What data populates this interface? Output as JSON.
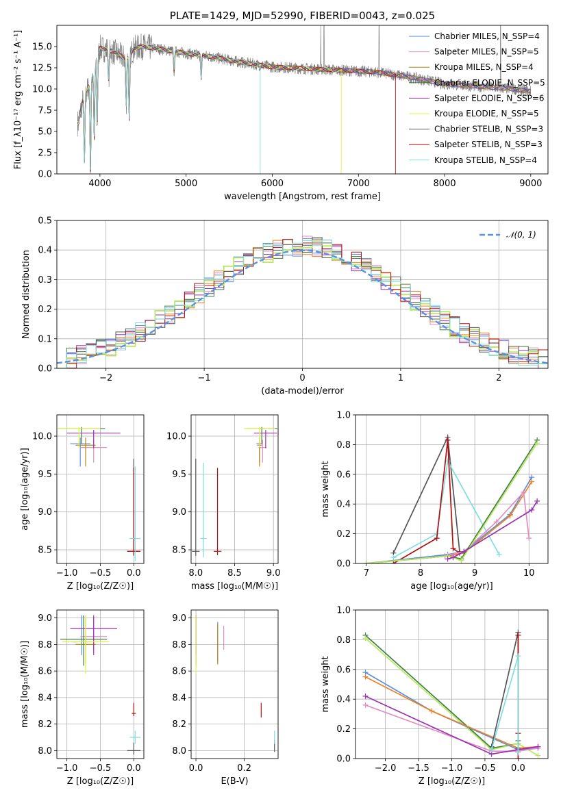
{
  "colors": {
    "Chabrier MILES": "#5b8fe0",
    "Salpeter MILES": "#e48cc0",
    "Kroupa MILES": "#b8860b",
    "Chabrier ELODIE": "#3f7f3f",
    "Salpeter ELODIE": "#9b30b0",
    "Kroupa ELODIE": "#e0f040",
    "Chabrier STELIB": "#555555",
    "Salpeter STELIB": "#b01010",
    "Kroupa STELIB": "#7fdde0",
    "Kroupa MILES line": "#f08020",
    "Kroupa ELODIE line": "#b8e860",
    "data": "#808080",
    "gaussian": "#5b8fe0"
  },
  "chart_data": [
    {
      "id": "spectrum",
      "type": "line",
      "title": "PLATE=1429, MJD=52990, FIBERID=0043, z=0.025",
      "xlabel": "wavelength [Angstrom, rest frame]",
      "ylabel": "Flux [f_λ10⁻¹⁷ erg cm⁻² s⁻¹ A⁻¹]",
      "xlim": [
        3500,
        9200
      ],
      "ylim": [
        0,
        17.5
      ],
      "xticks": [
        4000,
        5000,
        6000,
        7000,
        8000,
        9000
      ],
      "yticks": [
        0.0,
        2.5,
        5.0,
        7.5,
        10.0,
        12.5,
        15.0
      ],
      "legend_position": "upper right",
      "grid": false,
      "series": [
        {
          "name": "Chabrier MILES, N_SSP=4",
          "color_key": "Chabrier MILES"
        },
        {
          "name": "Salpeter MILES, N_SSP=5",
          "color_key": "Salpeter MILES"
        },
        {
          "name": "Kroupa MILES, N_SSP=4",
          "color_key": "Kroupa MILES"
        },
        {
          "name": "Chabrier ELODIE, N_SSP=5",
          "color_key": "Chabrier ELODIE"
        },
        {
          "name": "Salpeter ELODIE, N_SSP=6",
          "color_key": "Salpeter ELODIE"
        },
        {
          "name": "Kroupa ELODIE, N_SSP=5",
          "color_key": "Kroupa ELODIE"
        },
        {
          "name": "Chabrier STELIB, N_SSP=3",
          "color_key": "Chabrier STELIB"
        },
        {
          "name": "Salpeter STELIB, N_SSP=3",
          "color_key": "Salpeter STELIB"
        },
        {
          "name": "Kroupa STELIB, N_SSP=4",
          "color_key": "Kroupa STELIB"
        }
      ],
      "continuum": {
        "x": [
          3750,
          3800,
          3900,
          4000,
          4100,
          4200,
          4300,
          4400,
          4500,
          4700,
          5000,
          5300,
          5600,
          6000,
          6400,
          6800,
          7200,
          7600,
          8000,
          8400,
          8800,
          9000
        ],
        "y": [
          6.0,
          8.5,
          11.0,
          14.8,
          14.6,
          14.2,
          13.5,
          14.8,
          15.0,
          14.7,
          14.2,
          13.8,
          13.2,
          12.6,
          12.4,
          12.2,
          12.0,
          11.4,
          10.6,
          10.3,
          10.0,
          9.7
        ]
      },
      "absorption_features": [
        {
          "x": 3820,
          "y": 1.5
        },
        {
          "x": 3890,
          "y": 0.5
        },
        {
          "x": 3934,
          "y": 4.0
        },
        {
          "x": 3968,
          "y": 5.5
        },
        {
          "x": 4102,
          "y": 11.0
        },
        {
          "x": 4305,
          "y": 8.2
        },
        {
          "x": 4340,
          "y": 6.5
        },
        {
          "x": 4861,
          "y": 12.0
        },
        {
          "x": 5175,
          "y": 11.3
        }
      ],
      "model_cutoffs": [
        {
          "color_key": "Kroupa STELIB",
          "x": 5860
        },
        {
          "color_key": "Kroupa ELODIE",
          "x": 6800
        },
        {
          "color_key": "Salpeter STELIB",
          "x": 7430
        }
      ],
      "data_spikes": [
        6563,
        6600,
        7240,
        8650
      ]
    },
    {
      "id": "residuals",
      "type": "histogram",
      "xlabel": "(data-model)/error",
      "ylabel": "Normed distribution",
      "xlim": [
        -2.5,
        2.5
      ],
      "ylim": [
        0,
        0.5
      ],
      "xticks": [
        -2,
        -1,
        0,
        1,
        2
      ],
      "yticks": [
        0.0,
        0.1,
        0.2,
        0.3,
        0.4,
        0.5
      ],
      "grid": true,
      "legend_position": "upper right",
      "legend": "𝒩(0, 1)",
      "gaussian": {
        "mean": 0,
        "sigma": 1
      },
      "bin_width": 0.1
    },
    {
      "id": "Z-age",
      "type": "errorbar",
      "xlabel": "Z [log₁₀(Z/Z☉)]",
      "ylabel": "age  [log₁₀(age/yr)]",
      "xlim": [
        -1.15,
        0.15
      ],
      "ylim": [
        8.32,
        10.28
      ],
      "xticks": [
        -1.0,
        -0.5,
        0.0
      ],
      "xtick_labels": [
        "−1.0",
        "−0.5",
        "0.0"
      ],
      "yticks": [
        8.5,
        9.0,
        9.5,
        10.0
      ],
      "grid": true,
      "points": [
        {
          "c": "Chabrier MILES",
          "x": -0.8,
          "xerr": 0.15,
          "y": 9.9,
          "yerr": [
            0.3,
            0.08
          ]
        },
        {
          "c": "Salpeter MILES",
          "x": -0.6,
          "xerr": 0.2,
          "y": 9.85,
          "yerr": [
            0.2,
            0.1
          ]
        },
        {
          "c": "Kroupa MILES",
          "x": -0.72,
          "xerr": 0.15,
          "y": 9.88,
          "yerr": [
            0.28,
            0.1
          ]
        },
        {
          "c": "Chabrier ELODIE",
          "x": -0.78,
          "xerr": 0.35,
          "y": 10.1,
          "yerr": [
            0.2,
            0.02
          ]
        },
        {
          "c": "Salpeter ELODIE",
          "x": -0.6,
          "xerr": 0.4,
          "y": 10.04,
          "yerr": [
            0.2,
            0.04
          ]
        },
        {
          "c": "Kroupa ELODIE",
          "x": -0.82,
          "xerr": 0.32,
          "y": 10.1,
          "yerr": [
            0.25,
            0.02
          ]
        },
        {
          "c": "Chabrier STELIB",
          "x": 0.0,
          "xerr": 0.1,
          "y": 8.48,
          "yerr": [
            0.06,
            1.22
          ]
        },
        {
          "c": "Salpeter STELIB",
          "x": 0.0,
          "xerr": 0.1,
          "y": 8.48,
          "yerr": [
            0.05,
            1.1
          ]
        },
        {
          "c": "Kroupa STELIB",
          "x": 0.02,
          "xerr": 0.08,
          "y": 8.65,
          "yerr": [
            0.3,
            0.95
          ]
        }
      ]
    },
    {
      "id": "mass-age",
      "type": "errorbar",
      "xlabel": "mass [log₁₀(M/M☉)]",
      "ylabel": "",
      "xlim": [
        7.94,
        9.06
      ],
      "ylim": [
        8.32,
        10.28
      ],
      "xticks": [
        8.0,
        8.5,
        9.0
      ],
      "yticks": [
        8.5,
        9.0,
        9.5,
        10.0
      ],
      "grid": true,
      "points": [
        {
          "c": "Chabrier MILES",
          "x": 8.82,
          "xerr": 0.04,
          "y": 9.9,
          "yerr": [
            0.25,
            0.08
          ]
        },
        {
          "c": "Salpeter MILES",
          "x": 8.86,
          "xerr": 0.05,
          "y": 9.85,
          "yerr": [
            0.2,
            0.1
          ]
        },
        {
          "c": "Kroupa MILES",
          "x": 8.82,
          "xerr": 0.03,
          "y": 9.88,
          "yerr": [
            0.28,
            0.1
          ]
        },
        {
          "c": "Chabrier ELODIE",
          "x": 8.85,
          "xerr": 0.2,
          "y": 10.1,
          "yerr": [
            0.2,
            0.02
          ]
        },
        {
          "c": "Salpeter ELODIE",
          "x": 8.9,
          "xerr": 0.15,
          "y": 10.04,
          "yerr": [
            0.2,
            0.04
          ]
        },
        {
          "c": "Kroupa ELODIE",
          "x": 8.82,
          "xerr": 0.2,
          "y": 10.1,
          "yerr": [
            0.25,
            0.02
          ]
        },
        {
          "c": "Chabrier STELIB",
          "x": 8.0,
          "xerr": 0.05,
          "y": 8.48,
          "yerr": [
            0.06,
            1.22
          ]
        },
        {
          "c": "Salpeter STELIB",
          "x": 8.28,
          "xerr": 0.05,
          "y": 8.48,
          "yerr": [
            0.05,
            1.1
          ]
        },
        {
          "c": "Kroupa STELIB",
          "x": 8.1,
          "xerr": 0.04,
          "y": 8.65,
          "yerr": [
            0.25,
            1.0
          ]
        }
      ]
    },
    {
      "id": "age-weight",
      "type": "line",
      "xlabel": "age  [log₁₀(age/yr)]",
      "ylabel": "mass weight",
      "xlim": [
        6.8,
        10.35
      ],
      "ylim": [
        0,
        1.0
      ],
      "xticks": [
        7,
        8,
        9,
        10
      ],
      "yticks": [
        0.0,
        0.2,
        0.4,
        0.6,
        0.8,
        1.0
      ],
      "grid": true,
      "series": [
        {
          "c": "Chabrier STELIB",
          "x": [
            7.5,
            8.5,
            8.72
          ],
          "y": [
            0.07,
            0.85,
            0.08
          ]
        },
        {
          "c": "Kroupa STELIB",
          "x": [
            7.5,
            8.3,
            8.5,
            9.45
          ],
          "y": [
            0.04,
            0.2,
            0.69,
            0.06
          ]
        },
        {
          "c": "Salpeter STELIB",
          "x": [
            7.5,
            8.3,
            8.5,
            8.6,
            8.72
          ],
          "y": [
            0.0,
            0.17,
            0.83,
            0.1,
            0.07
          ]
        },
        {
          "c": "Chabrier MILES",
          "x": [
            7.0,
            8.5,
            8.8,
            9.65,
            10.05
          ],
          "y": [
            0.0,
            0.06,
            0.08,
            0.33,
            0.58
          ]
        },
        {
          "c": "Kroupa MILES line",
          "x": [
            7.0,
            8.5,
            8.8,
            9.65,
            10.05
          ],
          "y": [
            0.0,
            0.05,
            0.07,
            0.32,
            0.55
          ]
        },
        {
          "c": "Salpeter MILES",
          "x": [
            8.45,
            8.8,
            9.4,
            9.9,
            10.0
          ],
          "y": [
            0.05,
            0.08,
            0.28,
            0.48,
            0.17
          ]
        },
        {
          "c": "Chabrier ELODIE",
          "x": [
            7.0,
            8.5,
            8.75,
            10.15
          ],
          "y": [
            0.0,
            0.05,
            0.03,
            0.83
          ]
        },
        {
          "c": "Kroupa ELODIE line",
          "x": [
            7.0,
            8.5,
            8.75,
            10.15
          ],
          "y": [
            0.0,
            0.05,
            0.02,
            0.81
          ]
        },
        {
          "c": "Salpeter ELODIE",
          "x": [
            8.5,
            8.6,
            8.8,
            10.05,
            10.15
          ],
          "y": [
            0.03,
            0.04,
            0.08,
            0.36,
            0.42
          ]
        }
      ]
    },
    {
      "id": "Z-mass",
      "type": "errorbar",
      "xlabel": "Z [log₁₀(Z/Z☉)]",
      "ylabel": "mass [log₁₀(M/M☉)]",
      "xlim": [
        -1.15,
        0.15
      ],
      "ylim": [
        7.94,
        9.06
      ],
      "xticks": [
        -1.0,
        -0.5,
        0.0
      ],
      "xtick_labels": [
        "−1.0",
        "−0.5",
        "0.0"
      ],
      "yticks": [
        8.0,
        8.2,
        8.4,
        8.6,
        8.8,
        9.0
      ],
      "grid": true,
      "points": [
        {
          "c": "Chabrier MILES",
          "x": -0.78,
          "xerr": 0.15,
          "y": 8.82,
          "yerr": [
            0.1,
            0.2
          ]
        },
        {
          "c": "Salpeter MILES",
          "x": -0.6,
          "xerr": 0.2,
          "y": 8.86,
          "yerr": [
            0.1,
            0.15
          ]
        },
        {
          "c": "Kroupa MILES",
          "x": -0.72,
          "xerr": 0.15,
          "y": 8.8,
          "yerr": [
            0.15,
            0.2
          ]
        },
        {
          "c": "Chabrier ELODIE",
          "x": -0.75,
          "xerr": 0.35,
          "y": 8.84,
          "yerr": [
            0.2,
            0.18
          ]
        },
        {
          "c": "Salpeter ELODIE",
          "x": -0.6,
          "xerr": 0.35,
          "y": 8.92,
          "yerr": [
            0.2,
            0.1
          ]
        },
        {
          "c": "Kroupa ELODIE",
          "x": -0.72,
          "xerr": 0.35,
          "y": 8.82,
          "yerr": [
            0.24,
            0.2
          ]
        },
        {
          "c": "Chabrier STELIB",
          "x": 0.0,
          "xerr": 0.1,
          "y": 8.0,
          "yerr": [
            0.03,
            0.06
          ]
        },
        {
          "c": "Salpeter STELIB",
          "x": 0.0,
          "xerr": 0.03,
          "y": 8.28,
          "yerr": [
            0.02,
            0.08
          ]
        },
        {
          "c": "Kroupa STELIB",
          "x": 0.02,
          "xerr": 0.08,
          "y": 8.1,
          "yerr": [
            0.05,
            0.05
          ]
        }
      ]
    },
    {
      "id": "ebv-mass",
      "type": "errorbar",
      "xlabel": "E(B-V)",
      "ylabel": "",
      "xlim": [
        -0.02,
        0.34
      ],
      "ylim": [
        7.94,
        9.06
      ],
      "xticks": [
        0.0,
        0.2
      ],
      "yticks": [
        8.0,
        8.2,
        8.4,
        8.6,
        8.8,
        9.0
      ],
      "grid": true,
      "points": [
        {
          "c": "Chabrier MILES",
          "x": 0.09,
          "xerr": 0,
          "y": 8.82,
          "yerr": [
            0.15,
            0.15
          ]
        },
        {
          "c": "Salpeter MILES",
          "x": 0.115,
          "xerr": 0,
          "y": 8.86,
          "yerr": [
            0.1,
            0.08
          ]
        },
        {
          "c": "Kroupa MILES",
          "x": 0.09,
          "xerr": 0,
          "y": 8.8,
          "yerr": [
            0.15,
            0.15
          ]
        },
        {
          "c": "Chabrier ELODIE",
          "x": 0.0,
          "xerr": 0,
          "y": 8.84,
          "yerr": [
            0.2,
            0.18
          ]
        },
        {
          "c": "Salpeter ELODIE",
          "x": 0.0,
          "xerr": 0,
          "y": 8.92,
          "yerr": [
            0.2,
            0.1
          ]
        },
        {
          "c": "Kroupa ELODIE",
          "x": 0.0,
          "xerr": 0,
          "y": 8.82,
          "yerr": [
            0.24,
            0.2
          ]
        },
        {
          "c": "Chabrier STELIB",
          "x": 0.325,
          "xerr": 0,
          "y": 8.02,
          "yerr": [
            0.03,
            0.06
          ]
        },
        {
          "c": "Salpeter STELIB",
          "x": 0.27,
          "xerr": 0,
          "y": 8.3,
          "yerr": [
            0.05,
            0.06
          ]
        },
        {
          "c": "Kroupa STELIB",
          "x": 0.325,
          "xerr": 0,
          "y": 8.1,
          "yerr": [
            0.05,
            0.05
          ]
        }
      ]
    },
    {
      "id": "Z-weight",
      "type": "line",
      "xlabel": "Z [log₁₀(Z/Z☉)]",
      "ylabel": "mass weight",
      "xlim": [
        -2.45,
        0.45
      ],
      "ylim": [
        0,
        1.0
      ],
      "xticks": [
        -2.0,
        -1.5,
        -1.0,
        -0.5,
        0.0
      ],
      "xtick_labels": [
        "−2.0",
        "−1.5",
        "−1.0",
        "−0.5",
        "0.0"
      ],
      "yticks": [
        0.0,
        0.2,
        0.4,
        0.6,
        0.8,
        1.0
      ],
      "grid": true,
      "series": [
        {
          "c": "Chabrier ELODIE",
          "x": [
            -2.3,
            -0.4,
            0.0,
            0.0
          ],
          "y": [
            0.83,
            0.07,
            0.1,
            0.12
          ]
        },
        {
          "c": "Kroupa ELODIE line",
          "x": [
            -2.3,
            -0.4,
            0.0,
            0.3
          ],
          "y": [
            0.81,
            0.06,
            0.1,
            0.02
          ]
        },
        {
          "c": "Chabrier MILES",
          "x": [
            -2.3,
            -1.3,
            0.0,
            0.3
          ],
          "y": [
            0.58,
            0.32,
            0.06,
            0.07
          ]
        },
        {
          "c": "Kroupa MILES line",
          "x": [
            -2.3,
            -1.3,
            0.0,
            0.3
          ],
          "y": [
            0.55,
            0.32,
            0.07,
            0.08
          ]
        },
        {
          "c": "Salpeter MILES",
          "x": [
            -2.3,
            -0.4,
            0.0,
            0.3
          ],
          "y": [
            0.36,
            0.05,
            0.05,
            0.07
          ]
        },
        {
          "c": "Salpeter ELODIE",
          "x": [
            -2.3,
            -0.4,
            0.0,
            0.3
          ],
          "y": [
            0.42,
            0.03,
            0.06,
            0.08
          ]
        },
        {
          "c": "Chabrier STELIB",
          "x": [
            -0.4,
            0.0,
            0.0
          ],
          "y": [
            0.08,
            0.85,
            0.07
          ]
        },
        {
          "c": "Salpeter STELIB",
          "x": [
            0.0,
            0.0,
            0.0
          ],
          "y": [
            0.0,
            0.83,
            0.17
          ]
        },
        {
          "c": "Kroupa STELIB",
          "x": [
            -0.4,
            0.0,
            0.0
          ],
          "y": [
            0.06,
            0.69,
            0.04
          ]
        }
      ]
    }
  ]
}
